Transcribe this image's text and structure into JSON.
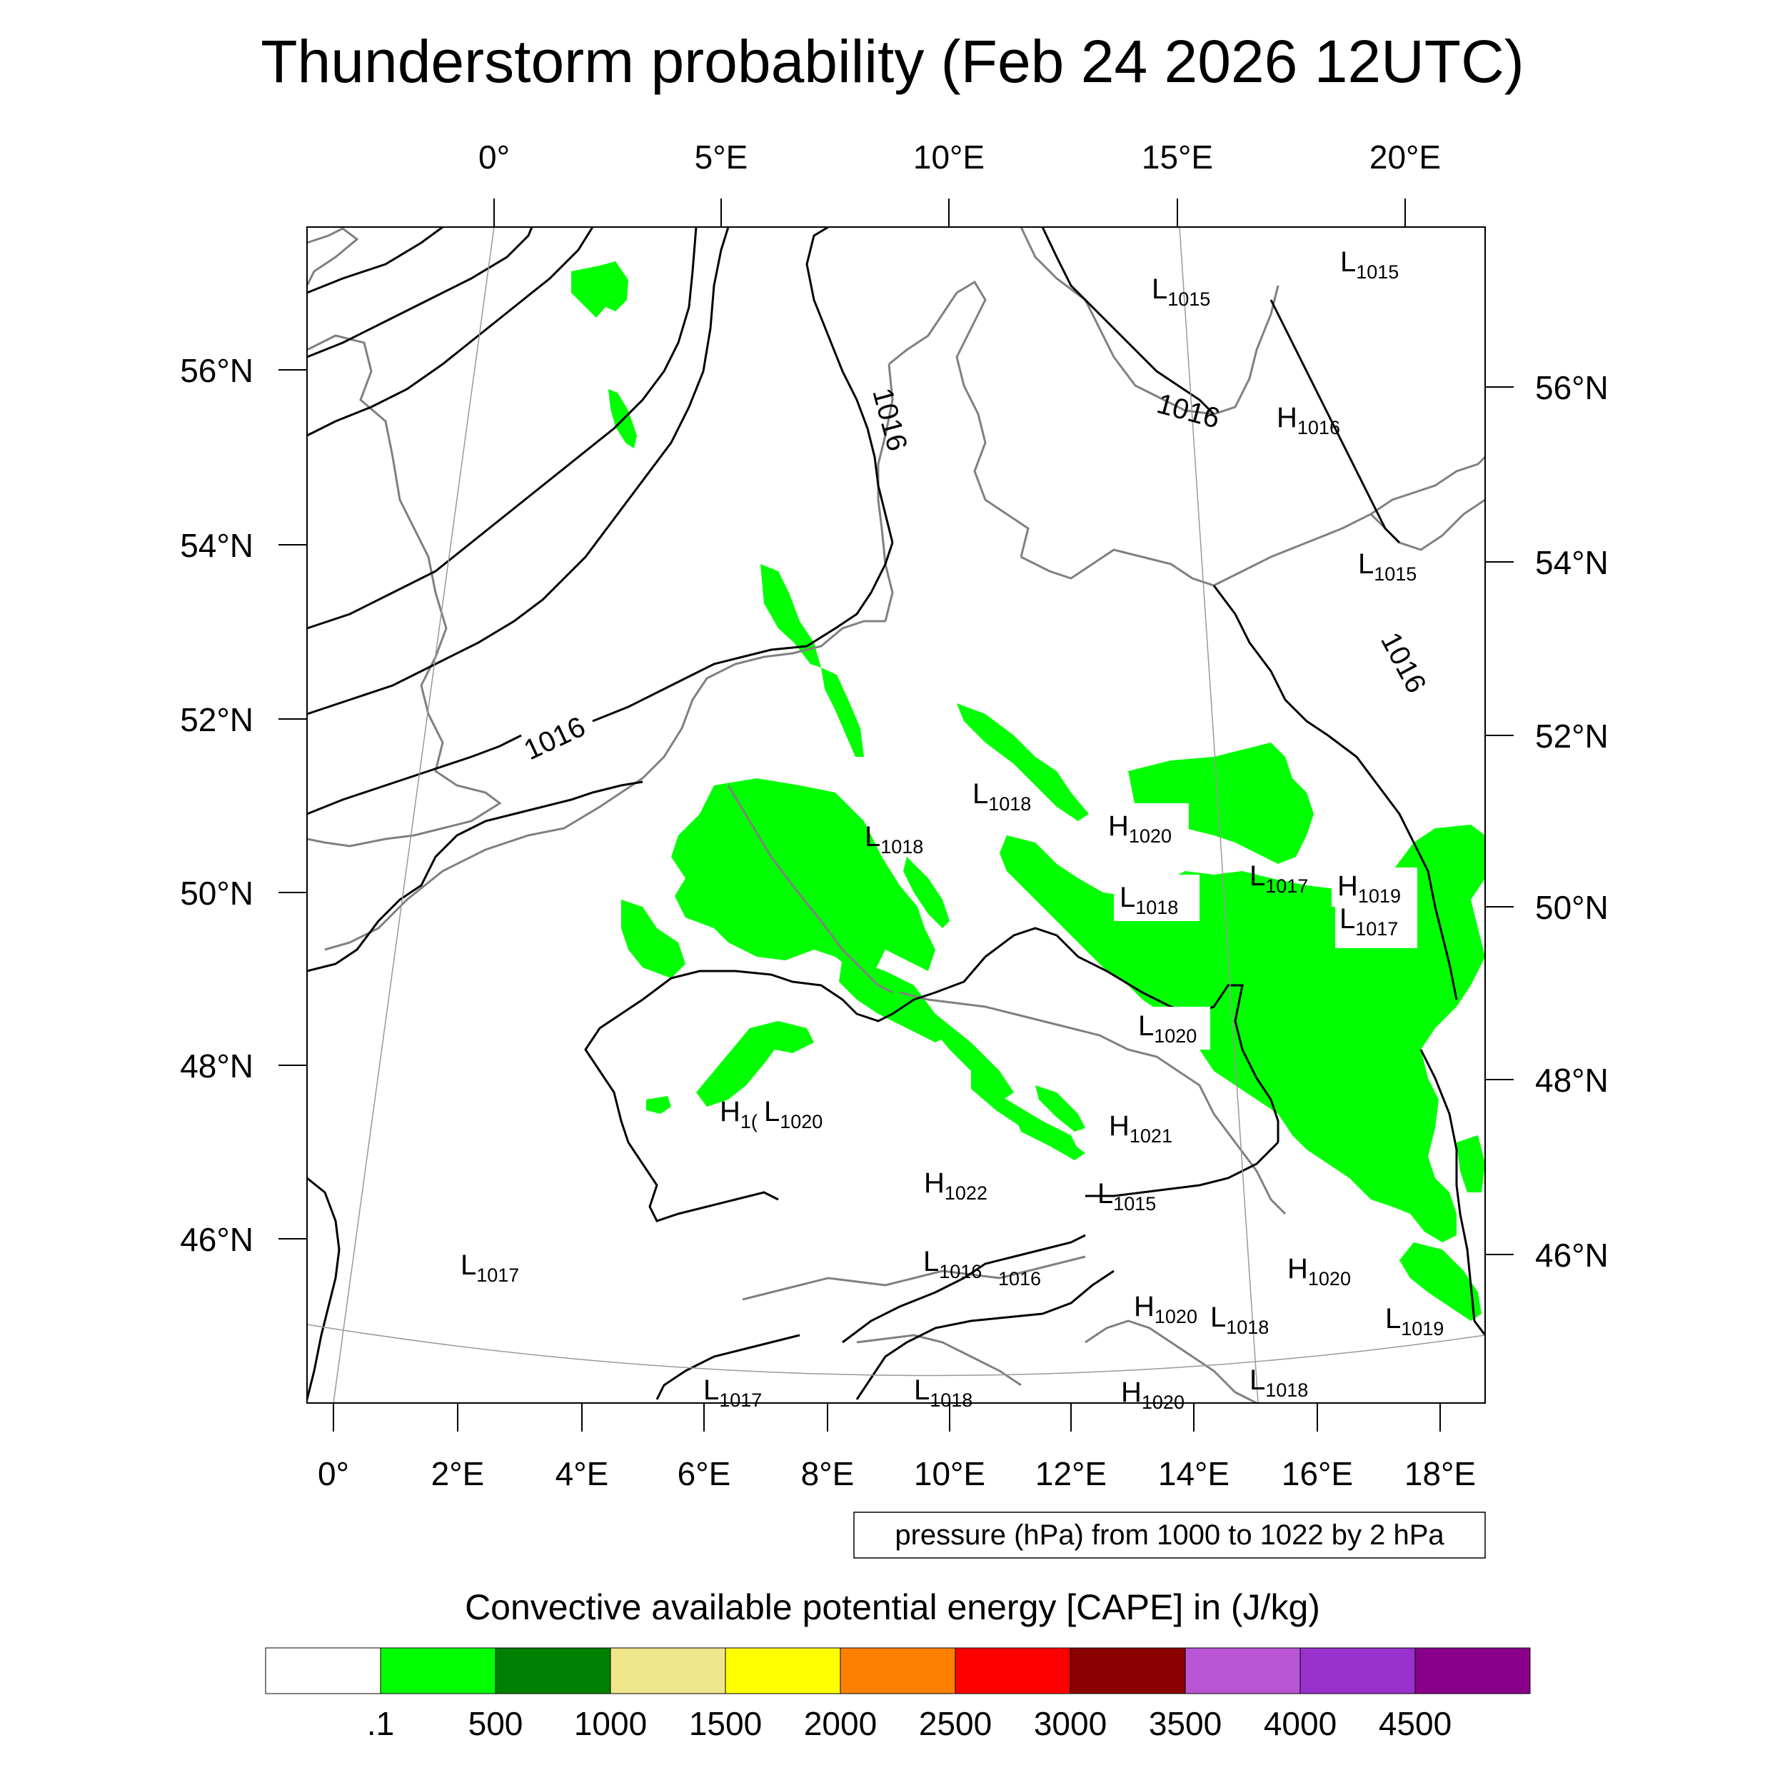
{
  "title": "Thunderstorm probability (Feb 24 2026 12UTC)",
  "top_axis_labels": [
    "0°",
    "5°E",
    "10°E",
    "15°E",
    "20°E"
  ],
  "bottom_axis_labels": [
    "0°",
    "2°E",
    "4°E",
    "6°E",
    "8°E",
    "10°E",
    "12°E",
    "14°E",
    "16°E",
    "18°E"
  ],
  "left_axis_labels": [
    "56°N",
    "54°N",
    "52°N",
    "50°N",
    "48°N",
    "46°N"
  ],
  "right_axis_labels": [
    "56°N",
    "54°N",
    "52°N",
    "50°N",
    "48°N",
    "46°N"
  ],
  "pressure_note": "pressure (hPa) from 1000 to 1022 by 2 hPa",
  "colorbar": {
    "title": "Convective available potential energy [CAPE] in (J/kg)",
    "colors": [
      "#ffffff",
      "#00ff00",
      "#008000",
      "#f0e68c",
      "#ffff00",
      "#ff8000",
      "#ff0000",
      "#8b0000",
      "#ba55d3",
      "#9932cc",
      "#8b008b"
    ],
    "labels": [
      ".1",
      "500",
      "1000",
      "1500",
      "2000",
      "2500",
      "3000",
      "3500",
      "4000",
      "4500"
    ]
  },
  "cape_color": "#00ff00",
  "isobar_labels": [
    "1016",
    "1016",
    "1016",
    "1016"
  ],
  "pressure_centers": [
    {
      "letter": "L",
      "value": "1015"
    },
    {
      "letter": "L",
      "value": "1015"
    },
    {
      "letter": "H",
      "value": "1016"
    },
    {
      "letter": "L",
      "value": "1015"
    },
    {
      "letter": "L",
      "value": "1018"
    },
    {
      "letter": "L",
      "value": "1018"
    },
    {
      "letter": "H",
      "value": "1020"
    },
    {
      "letter": "L",
      "value": "1017"
    },
    {
      "letter": "H",
      "value": "1019"
    },
    {
      "letter": "L",
      "value": "1018"
    },
    {
      "letter": "L",
      "value": "1017"
    },
    {
      "letter": "L",
      "value": "1020"
    },
    {
      "letter": "H",
      "value": "1("
    },
    {
      "letter": "L",
      "value": "1020"
    },
    {
      "letter": "H",
      "value": "1021"
    },
    {
      "letter": "H",
      "value": "1022"
    },
    {
      "letter": "L",
      "value": "1015"
    },
    {
      "letter": "L",
      "value": "1017"
    },
    {
      "letter": "L",
      "value": "1016"
    },
    {
      "letter": "H",
      "value": "1020"
    },
    {
      "letter": "H",
      "value": "1020"
    },
    {
      "letter": "L",
      "value": "1018"
    },
    {
      "letter": "L",
      "value": "1019"
    },
    {
      "letter": "L",
      "value": "1017"
    },
    {
      "letter": "L",
      "value": "1018"
    },
    {
      "letter": "H",
      "value": "1020"
    },
    {
      "letter": "L",
      "value": "1018"
    }
  ],
  "small_isobar_label": "1016"
}
